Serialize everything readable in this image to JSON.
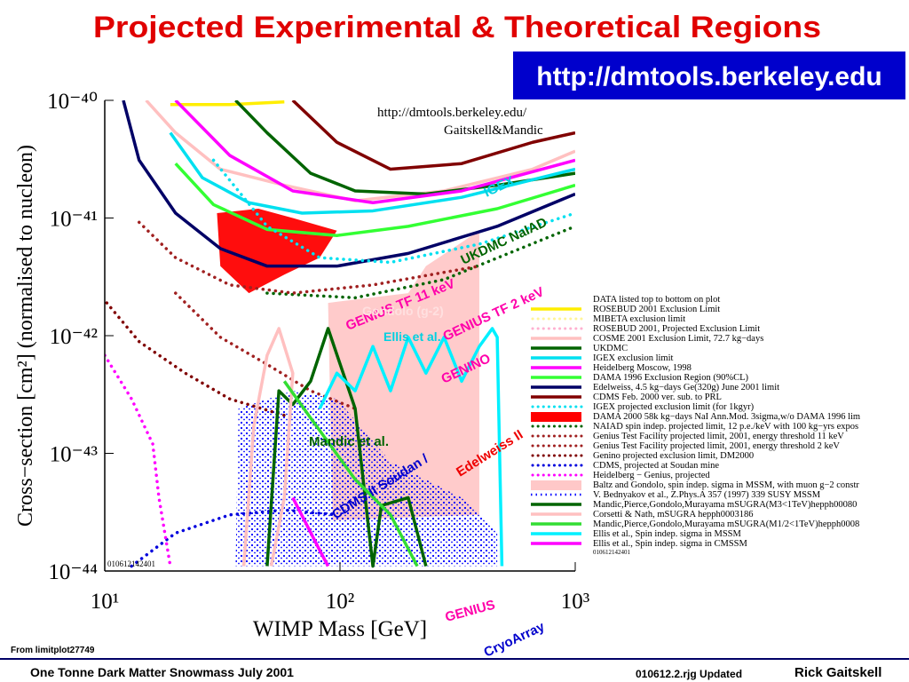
{
  "slide": {
    "title": "Projected Experimental & Theoretical Regions",
    "url_badge": "http://dmtools.berkeley.edu",
    "source": "From limitplot27749",
    "footer_left": "One Tonne Dark Matter Snowmass July 2001",
    "footer_mid": "010612.2.rjg Updated",
    "footer_right": "Rick Gaitskell"
  },
  "chart_data": {
    "type": "line",
    "xlabel": "WIMP Mass [GeV]",
    "ylabel": "Cross−section [cm²] (normalised to nucleon)",
    "xscale": "log",
    "yscale": "log",
    "xlim": [
      10,
      1000
    ],
    "ylim": [
      1e-44,
      1e-40
    ],
    "xticks": [
      {
        "value": 10,
        "label": "10¹"
      },
      {
        "value": 100,
        "label": "10²"
      },
      {
        "value": 1000,
        "label": "10³"
      }
    ],
    "yticks": [
      {
        "value": 1e-44,
        "label": "10⁻⁴⁴"
      },
      {
        "value": 1e-43,
        "label": "10⁻⁴³"
      },
      {
        "value": 1e-42,
        "label": "10⁻⁴²"
      },
      {
        "value": 1e-41,
        "label": "10⁻⁴¹"
      },
      {
        "value": 1e-40,
        "label": "10⁻⁴⁰"
      }
    ],
    "url_note": "http://dmtools.berkeley.edu/",
    "authors_note": "Gaitskell&Mandic",
    "plot_code": "010612142401",
    "legend_title": "DATA listed top to bottom on plot",
    "legend_code": "010612142401",
    "series": [
      {
        "name": "ROSEBUD 2001 Exclusion Limit",
        "color": "#ffee00",
        "style": "line",
        "x": [
          19,
          34,
          58
        ],
        "values": [
          9.2e-41,
          9.2e-41,
          9.7e-41
        ]
      },
      {
        "name": "MIBETA exclusion limit",
        "color": "#fff59a",
        "style": "dotted"
      },
      {
        "name": "ROSEBUD 2001, Projected Exclusion Limit",
        "color": "#ffb0d0",
        "style": "dotted"
      },
      {
        "name": "COSME 2001 Exclusion Limit, 72.7 kg−days",
        "color": "#ffc0c0",
        "style": "line",
        "x": [
          15,
          20,
          31,
          58,
          116,
          277,
          659,
          1000
        ],
        "values": [
          1e-40,
          5.3e-41,
          2.6e-41,
          1.9e-41,
          1.4e-41,
          1.7e-41,
          2.6e-41,
          3.7e-41
        ]
      },
      {
        "name": "UKDMC",
        "color": "#006400",
        "style": "line",
        "x": [
          36,
          49,
          75,
          116,
          232,
          466,
          1000
        ],
        "values": [
          1e-40,
          5.3e-41,
          2.4e-41,
          1.7e-41,
          1.6e-41,
          1.9e-41,
          2.4e-41
        ]
      },
      {
        "name": "IGEX exclusion limit",
        "color": "#00e0f0",
        "style": "line",
        "x": [
          19,
          26,
          41,
          69,
          138,
          329,
          1000
        ],
        "values": [
          5.3e-41,
          2.2e-41,
          1.35e-41,
          1.1e-41,
          1.15e-41,
          1.5e-41,
          2.6e-41
        ]
      },
      {
        "name": "Heidelberg Moscow, 1998",
        "color": "#ff00ff",
        "style": "line",
        "x": [
          20,
          34,
          63,
          138,
          329,
          1000
        ],
        "values": [
          1e-40,
          3.4e-41,
          1.7e-41,
          1.35e-41,
          1.7e-41,
          3.1e-41
        ]
      },
      {
        "name": "DAMA 1996 Exclusion Region (90%CL)",
        "color": "#33ff33",
        "style": "line",
        "x": [
          20,
          29,
          49,
          97,
          195,
          466,
          1000
        ],
        "values": [
          2.9e-41,
          1.3e-41,
          8e-42,
          7.1e-42,
          8.5e-42,
          1.2e-41,
          1.9e-41
        ]
      },
      {
        "name": "Edelweiss, 4.5 kg−days Ge(320g) June 2001 limit",
        "color": "#000066",
        "style": "line",
        "x": [
          12,
          14,
          20,
          31,
          49,
          97,
          195,
          466,
          1000
        ],
        "values": [
          1e-40,
          3.1e-41,
          1.1e-41,
          5.5e-42,
          3.9e-42,
          3.9e-42,
          5e-42,
          8.5e-42,
          1.6e-41
        ]
      },
      {
        "name": "CDMS Feb. 2000 ver. sub. to PRL",
        "color": "#800000",
        "style": "line",
        "x": [
          63,
          97,
          164,
          329,
          659,
          1000
        ],
        "values": [
          1e-40,
          4.4e-41,
          2.6e-41,
          2.9e-41,
          4.4e-41,
          5.3e-41
        ]
      },
      {
        "name": "IGEX projected exclusion limit (for 1kgyr)",
        "color": "#00e0f0",
        "style": "dotted",
        "x": [
          29,
          49,
          82,
          164,
          391,
          1000
        ],
        "values": [
          3.1e-41,
          8.5e-42,
          4.6e-42,
          4.2e-42,
          6e-42,
          1.1e-41
        ]
      },
      {
        "name": "DAMA 2000 58k kg−days NaI Ann.Mod. 3sigma,w/o DAMA 1996 lim",
        "color": "#ff0000",
        "style": "area",
        "x": [
          30,
          45,
          63,
          97,
          82,
          58,
          41,
          31
        ],
        "values": [
          1.1e-41,
          1.2e-41,
          1e-41,
          7.8e-42,
          4.6e-42,
          3.3e-42,
          2.3e-42,
          3.9e-42
        ]
      },
      {
        "name": "NAIAD spin indep. projected limit, 12 p.e./keV with 100 kg−yrs expos",
        "color": "#006400",
        "style": "dotted",
        "x": [
          49,
          116,
          277,
          1000
        ],
        "values": [
          2.3e-42,
          2.1e-42,
          3e-42,
          8.5e-42
        ]
      },
      {
        "name": "Genius Test Facility projected limit, 2001, energy threshold 11 keV",
        "color": "#a02020",
        "style": "dotted",
        "x": [
          14,
          20,
          34,
          63,
          138,
          391
        ],
        "values": [
          9.2e-42,
          4.6e-42,
          2.7e-42,
          2.3e-42,
          2.7e-42,
          3.9e-42
        ]
      },
      {
        "name": "Genius Test Facility projected limit, 2001, energy threshold 2 keV",
        "color": "#a02020",
        "style": "dotted",
        "x": [
          20,
          31,
          49,
          75,
          116
        ],
        "values": [
          2.3e-42,
          9.7e-43,
          5.7e-43,
          3.4e-43,
          2.4e-43
        ]
      },
      {
        "name": "Genino projected exclusion limit, DM2000",
        "color": "#800000",
        "style": "dotted",
        "x": [
          10.2,
          14,
          22,
          34,
          63
        ],
        "values": [
          1.9e-42,
          8.9e-43,
          4.8e-43,
          2.9e-43,
          2e-43
        ]
      },
      {
        "name": "CDMS, projected at Soudan mine",
        "color": "#0000dd",
        "style": "dotted",
        "x": [
          13,
          20,
          34,
          58,
          97
        ],
        "values": [
          1.1e-44,
          2.1e-44,
          3e-44,
          3.3e-44,
          3e-44
        ]
      },
      {
        "name": "Heidelberg − Genius, projected",
        "color": "#ff00ff",
        "style": "dotted",
        "x": [
          10,
          13,
          16,
          17,
          19
        ],
        "values": [
          6.8e-43,
          2.9e-43,
          1.2e-43,
          4.2e-44,
          1.1e-44
        ]
      },
      {
        "name": "Baltz and Gondolo, spin indep. sigma in MSSM, with muon g−2 constr",
        "color": "#ffc8c8",
        "style": "area",
        "x": [
          89,
          195,
          232,
          391,
          391,
          93
        ],
        "values": [
          1.9e-42,
          2.3e-42,
          3.9e-42,
          7.8e-42,
          3e-44,
          2.7e-44
        ]
      },
      {
        "name": "V. Bednyakov et al., Z.Phys.A 357 (1997) 339 SUSY MSSM",
        "color": "#0000ff",
        "style": "dots",
        "x": [
          37,
          63,
          97,
          164,
          329,
          466,
          466,
          36
        ],
        "values": [
          2.4e-43,
          3.4e-43,
          2.9e-43,
          8.5e-44,
          4.2e-44,
          2.1e-44,
          1.1e-44,
          1.1e-44
        ]
      },
      {
        "name": "Mandic,Pierce,Gondolo,Murayama mSUGRA(M3<1TeV)hepph00080",
        "color": "#006400",
        "style": "line",
        "x": [
          49,
          55,
          63,
          75,
          89,
          116,
          138,
          150,
          195,
          232
        ],
        "values": [
          1.1e-44,
          3.4e-43,
          2.6e-43,
          4.1e-43,
          1.15e-42,
          2.4e-43,
          1.1e-44,
          3.6e-44,
          4.2e-44,
          1.1e-44
        ]
      },
      {
        "name": "Corsetti & Nath, mSUGRA hepph0003186",
        "color": "#ffc0c0",
        "style": "line",
        "x": [
          39,
          43,
          49,
          55,
          63,
          58,
          51
        ],
        "values": [
          1.1e-44,
          1.7e-43,
          6.8e-43,
          1.15e-42,
          4.8e-43,
          4.2e-44,
          1.1e-44
        ]
      },
      {
        "name": "Mandic,Pierce,Gondolo,Murayama mSUGRA(M1/2<1TeV)hepph0008",
        "color": "#33dd33",
        "style": "line",
        "x": [
          58,
          75,
          116,
          164,
          213
        ],
        "values": [
          4.1e-43,
          2e-43,
          6e-44,
          3e-44,
          1.1e-44
        ]
      },
      {
        "name": "Ellis et al., Spin indep. sigma in MSSM",
        "color": "#00f0ff",
        "style": "line",
        "x": [
          82,
          97,
          116,
          138,
          164,
          195,
          232,
          277,
          329,
          391,
          444,
          466,
          488
        ],
        "values": [
          2.4e-43,
          4.8e-43,
          3.4e-43,
          8.1e-43,
          3.4e-43,
          9.7e-43,
          4.8e-43,
          9.7e-43,
          4.1e-43,
          8.1e-43,
          1.15e-42,
          9.7e-43,
          1.1e-44
        ]
      },
      {
        "name": "Ellis et al., Spin indep. sigma in CMSSM",
        "color": "#ff00ff",
        "style": "line",
        "x": [
          63,
          72,
          82,
          89
        ],
        "values": [
          4.2e-44,
          2.5e-44,
          1.5e-44,
          1.1e-44
        ]
      }
    ],
    "annotations": [
      {
        "text": "IGEX",
        "color": "#00d0e0"
      },
      {
        "text": "UKDMC NaIAD",
        "color": "#006400"
      },
      {
        "text": "GENIUS TF 11 keV",
        "color": "#ff00aa"
      },
      {
        "text": "Gondolo (g-2)",
        "color": "#ffe0e0"
      },
      {
        "text": "GENIUS TF 2 keV",
        "color": "#ff00aa"
      },
      {
        "text": "Ellis et al.",
        "color": "#00d0e0"
      },
      {
        "text": "GENINO",
        "color": "#ff00aa"
      },
      {
        "text": "Mandic et al.",
        "color": "#006400"
      },
      {
        "text": "CDMS II Soudan /",
        "color": "#0000cc"
      },
      {
        "text": "Edelweiss II",
        "color": "#ee0000"
      },
      {
        "text": "GENIUS",
        "color": "#ff00aa"
      },
      {
        "text": "CryoArray",
        "color": "#0000cc"
      }
    ]
  }
}
